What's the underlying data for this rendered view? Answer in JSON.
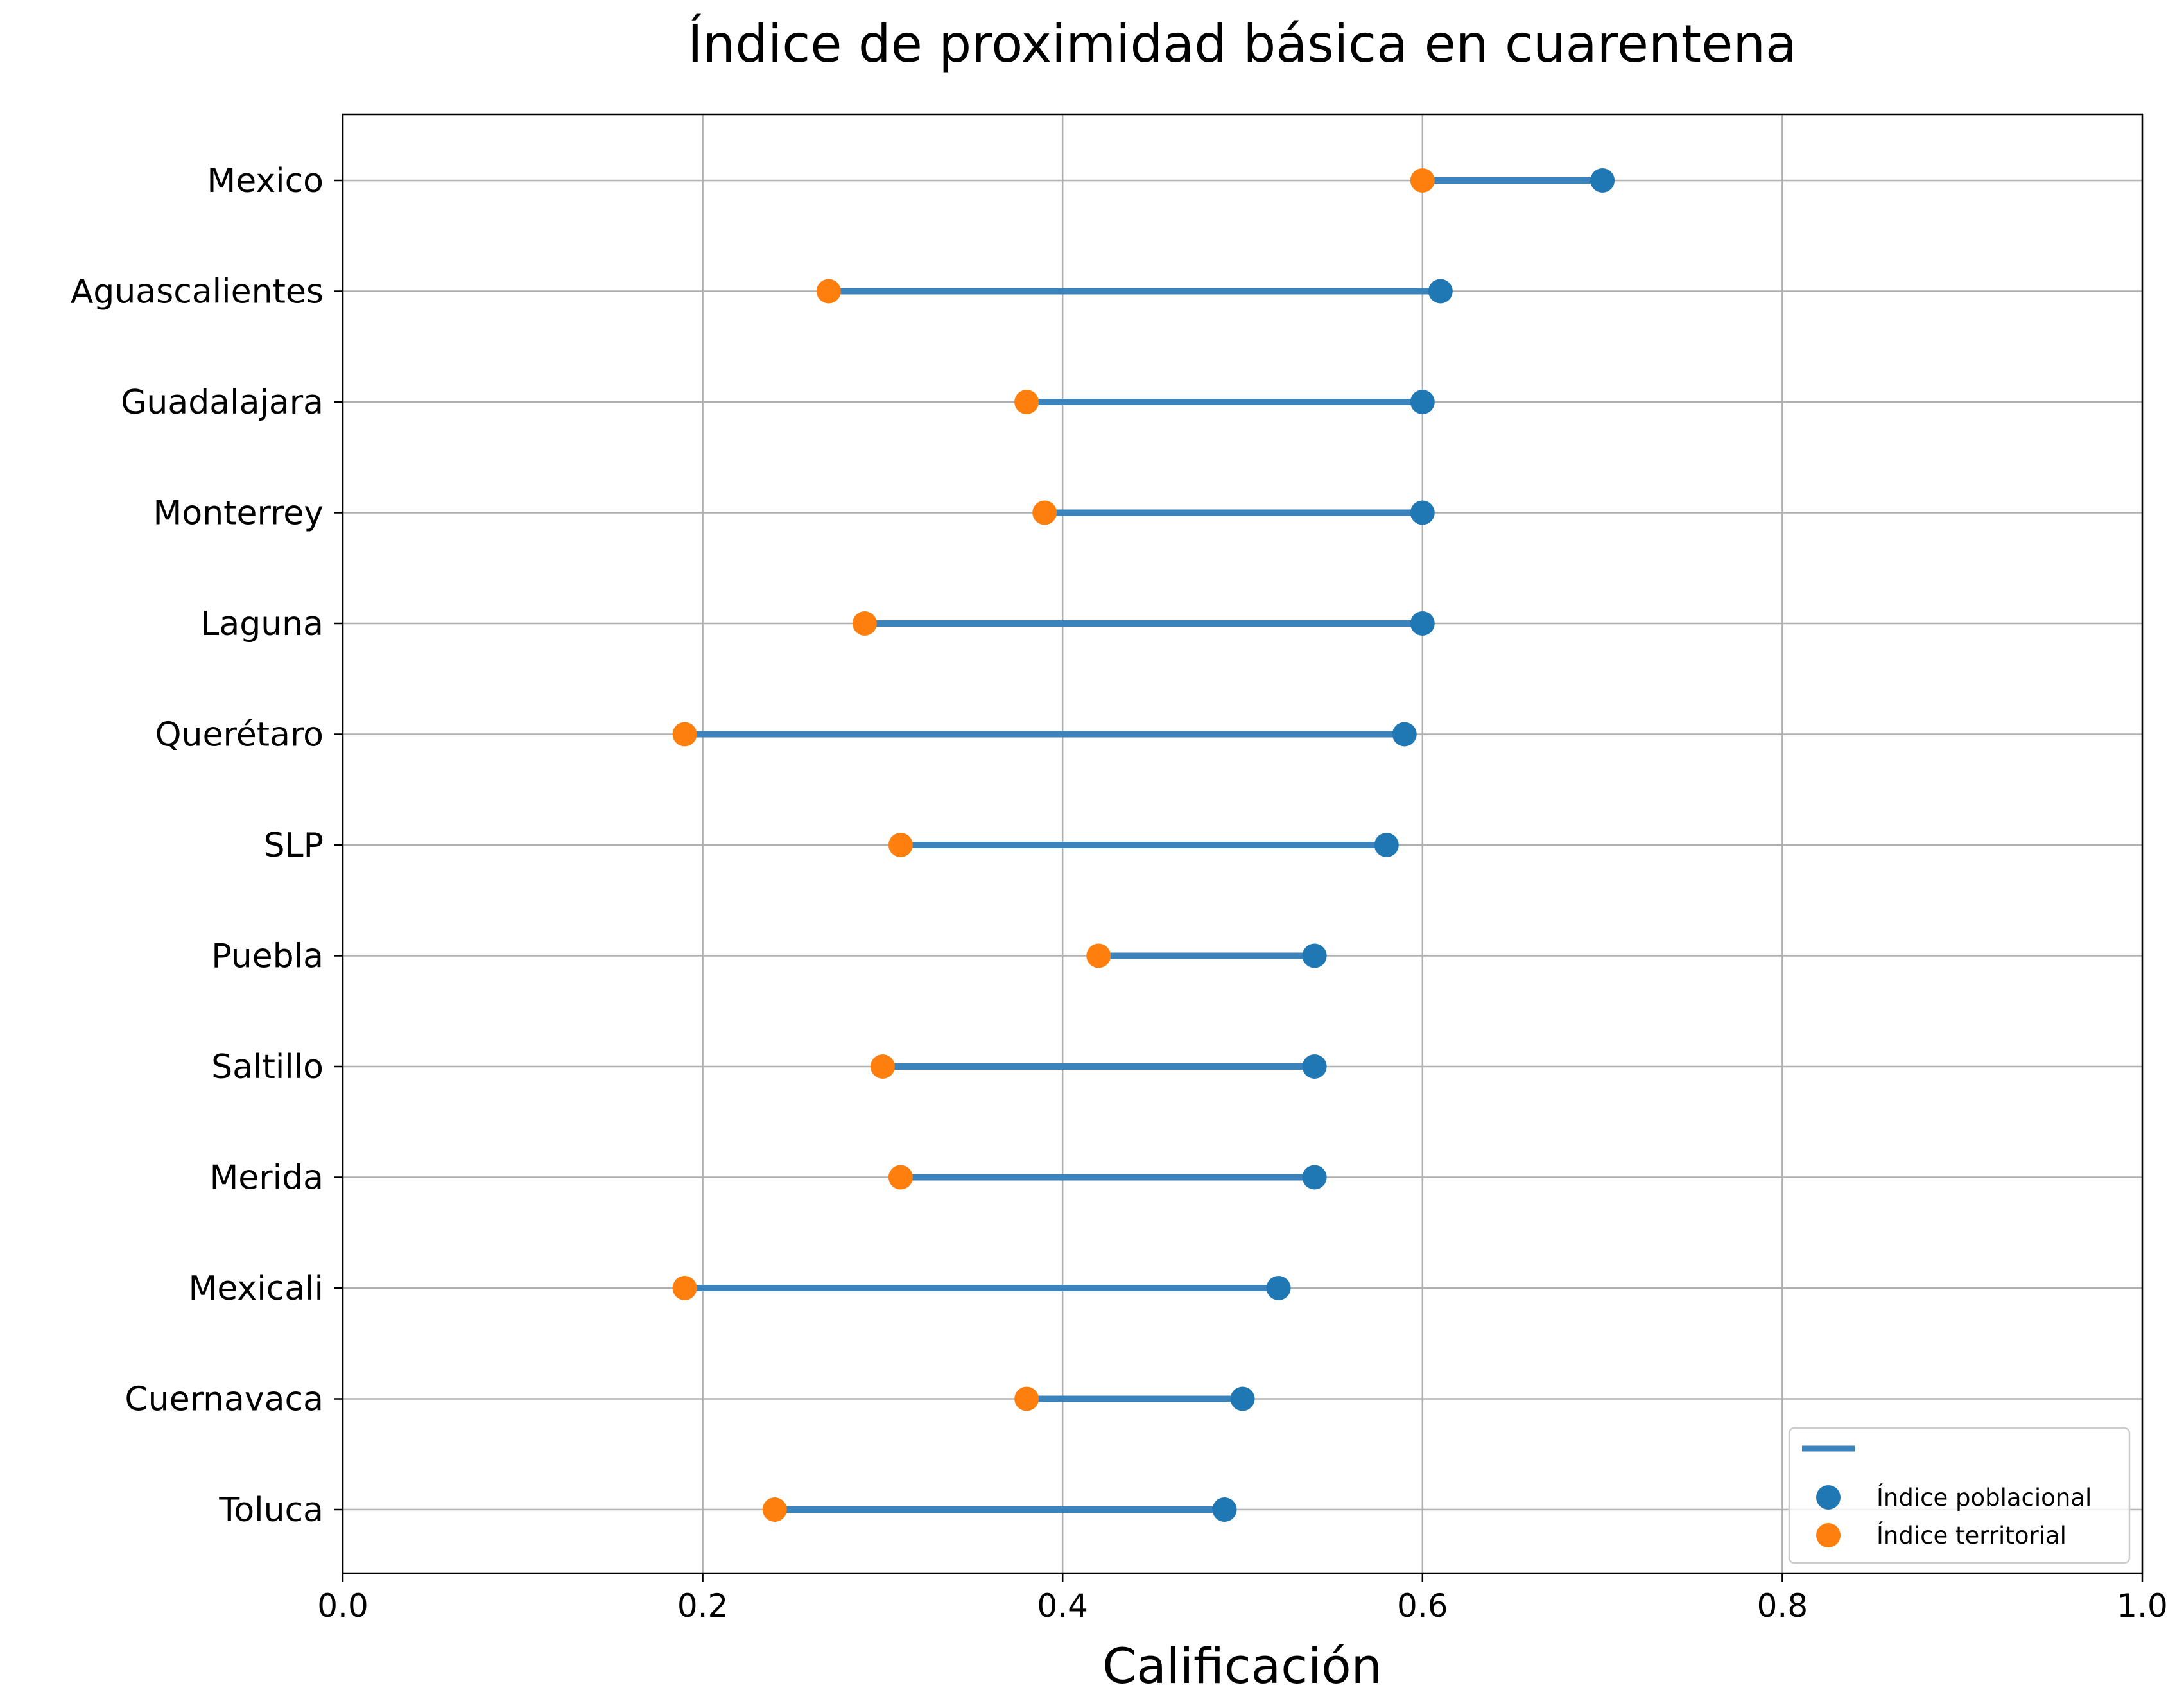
{
  "chart_data": {
    "type": "dumbbell",
    "title": "Índice de proximidad básica en cuarentena",
    "xlabel": "Calificación",
    "ylabel": "",
    "xlim": [
      0,
      1
    ],
    "xticks": [
      0.0,
      0.2,
      0.4,
      0.6,
      0.8,
      1.0
    ],
    "xtick_labels": [
      "0.0",
      "0.2",
      "0.4",
      "0.6",
      "0.8",
      "1.0"
    ],
    "grid": true,
    "legend_position": "bottom-right",
    "categories": [
      "Mexico",
      "Aguascalientes",
      "Guadalajara",
      "Monterrey",
      "Laguna",
      "Querétaro",
      "SLP",
      "Puebla",
      "Saltillo",
      "Merida",
      "Mexicali",
      "Cuernavaca",
      "Toluca"
    ],
    "series": [
      {
        "name": "Índice poblacional",
        "color": "#1f77b4",
        "values": [
          0.7,
          0.61,
          0.6,
          0.6,
          0.6,
          0.59,
          0.58,
          0.54,
          0.54,
          0.54,
          0.52,
          0.5,
          0.49
        ]
      },
      {
        "name": "Índice territorial",
        "color": "#ff7f0e",
        "values": [
          0.6,
          0.27,
          0.38,
          0.39,
          0.29,
          0.19,
          0.31,
          0.42,
          0.3,
          0.31,
          0.19,
          0.38,
          0.24
        ]
      }
    ],
    "connector_color": "#3a83bd"
  }
}
